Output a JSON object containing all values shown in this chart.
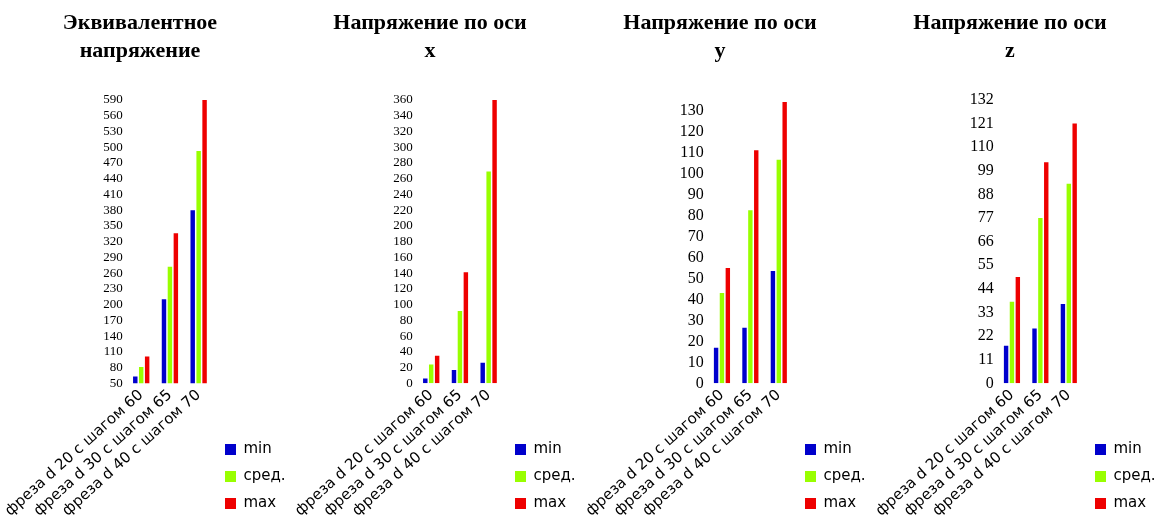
{
  "chart_data": [
    {
      "type": "bar",
      "title": "Эквивалентное напряжение",
      "categories": [
        "фреза d 20 с шагом 60",
        "фреза d 30 с шагом 65",
        "фреза d 40 с шагом 70"
      ],
      "series": [
        {
          "name": "min",
          "color": "#0000cc",
          "values": [
            63,
            210,
            380
          ]
        },
        {
          "name": "сред.",
          "color": "#99ff00",
          "values": [
            81,
            272,
            493
          ]
        },
        {
          "name": "max",
          "color": "#ee0000",
          "values": [
            101,
            336,
            590
          ]
        }
      ],
      "ylim": [
        50,
        590
      ],
      "yticks": [
        50,
        80,
        110,
        140,
        170,
        200,
        230,
        260,
        290,
        320,
        350,
        380,
        410,
        440,
        470,
        500,
        530,
        560,
        590
      ],
      "grid": false,
      "legend": "bottom right"
    },
    {
      "type": "bar",
      "title": "Напряжение по оси x",
      "categories": [
        "фреза d 20 с шагом 60",
        "фреза d 30 с шагом 65",
        "фреза d 40 с шагом 70"
      ],
      "series": [
        {
          "name": "min",
          "color": "#0000cc",
          "values": [
            6,
            17,
            26
          ]
        },
        {
          "name": "сред.",
          "color": "#99ff00",
          "values": [
            24,
            92,
            269
          ]
        },
        {
          "name": "max",
          "color": "#ee0000",
          "values": [
            35,
            141,
            360
          ]
        }
      ],
      "ylim": [
        0,
        360
      ],
      "yticks": [
        0,
        20,
        40,
        60,
        80,
        100,
        120,
        140,
        160,
        180,
        200,
        220,
        240,
        260,
        280,
        300,
        320,
        340,
        360
      ],
      "grid": false,
      "legend": "bottom right"
    },
    {
      "type": "bar",
      "title": "Напряжение по оси y",
      "categories": [
        "фреза d 20 с шагом 60",
        "фреза d 30 с шагом 65",
        "фреза d 40 с шагом 70"
      ],
      "series": [
        {
          "name": "min",
          "color": "#0000cc",
          "values": [
            17,
            26.5,
            53.5
          ]
        },
        {
          "name": "сред.",
          "color": "#99ff00",
          "values": [
            43,
            82.5,
            106.5
          ]
        },
        {
          "name": "max",
          "color": "#ee0000",
          "values": [
            55,
            111,
            134
          ]
        }
      ],
      "ylim": [
        0,
        135
      ],
      "yticks": [
        0,
        10,
        20,
        30,
        40,
        50,
        60,
        70,
        80,
        90,
        100,
        110,
        120,
        130
      ],
      "grid": false,
      "legend": "bottom right"
    },
    {
      "type": "bar",
      "title": "Напряжение по оси z",
      "categories": [
        "фреза d 20 с шагом 60",
        "фреза d 30 с шагом 65",
        "фреза d 40 с шагом 70"
      ],
      "series": [
        {
          "name": "min",
          "color": "#0000cc",
          "values": [
            17.5,
            25.5,
            37
          ]
        },
        {
          "name": "сред.",
          "color": "#99ff00",
          "values": [
            38,
            77,
            93
          ]
        },
        {
          "name": "max",
          "color": "#ee0000",
          "values": [
            49.5,
            103,
            121
          ]
        }
      ],
      "ylim": [
        0,
        132
      ],
      "yticks": [
        0,
        11,
        22,
        33,
        44,
        55,
        66,
        77,
        88,
        99,
        110,
        121,
        132
      ],
      "grid": false,
      "legend": "bottom right"
    }
  ]
}
